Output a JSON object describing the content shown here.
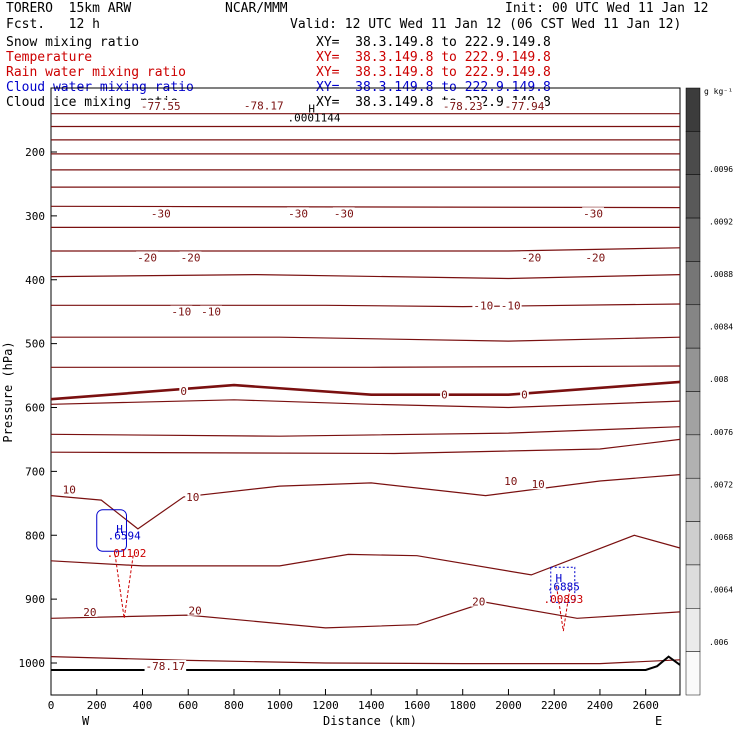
{
  "header": {
    "model": "TORERO  15km ARW",
    "fcst": "Fcst.   12 h",
    "center": "NCAR/MMM",
    "init": "Init: 00 UTC Wed 11 Jan 12",
    "valid": "Valid: 12 UTC Wed 11 Jan 12 (06 CST Wed 11 Jan 12)"
  },
  "fields": [
    {
      "name": "Snow mixing ratio",
      "xy": "XY=  38.3.149.8 to 222.9.149.8",
      "color": "#000000"
    },
    {
      "name": "Temperature",
      "xy": "XY=  38.3.149.8 to 222.9.149.8",
      "color": "#cc0000"
    },
    {
      "name": "Rain water mixing ratio",
      "xy": "XY=  38.3.149.8 to 222.9.149.8",
      "color": "#cc0000"
    },
    {
      "name": "Cloud water mixing ratio",
      "xy": "XY=  38.3.149.8 to 222.9.149.8",
      "color": "#0000cc"
    },
    {
      "name": "Cloud ice mixing ratio",
      "xy": "XY=  38.3.149.8 to 222.9.149.8",
      "color": "#000000"
    }
  ],
  "chart_data": {
    "type": "cross-section contour",
    "xlabel": "Distance (km)",
    "ylabel": "Pressure (hPa)",
    "x_ticks": [
      0,
      200,
      400,
      600,
      800,
      1000,
      1200,
      1400,
      1600,
      1800,
      2000,
      2200,
      2400,
      2600
    ],
    "y_ticks": [
      200,
      300,
      400,
      500,
      600,
      700,
      800,
      900,
      1000
    ],
    "xlim": [
      0,
      2750
    ],
    "ylim": [
      1050,
      120
    ],
    "x_end_labels": {
      "left": "W",
      "right": "E"
    },
    "colorbar": {
      "unit": "g kg⁻¹",
      "labels": [
        ".006",
        ".0064",
        ".0068",
        ".0072",
        ".0076",
        ".008",
        ".0084",
        ".0088",
        ".0092",
        ".0096"
      ]
    },
    "temperature_contour_labels": [
      {
        "x": 500,
        "p": 1004.8,
        "text": "-78.17"
      },
      {
        "x": 930,
        "p": 127,
        "text": "-78.17"
      },
      {
        "x": 480,
        "p": 128,
        "text": "-77.55"
      },
      {
        "x": 1800,
        "p": 128,
        "text": "-78.23"
      },
      {
        "x": 2070,
        "p": 128,
        "text": "-77.94"
      },
      {
        "x": 480,
        "p": 296,
        "text": "-30"
      },
      {
        "x": 1080,
        "p": 296,
        "text": "-30"
      },
      {
        "x": 1280,
        "p": 296,
        "text": "-30"
      },
      {
        "x": 2370,
        "p": 296,
        "text": "-30"
      },
      {
        "x": 420,
        "p": 365,
        "text": "-20"
      },
      {
        "x": 610,
        "p": 365,
        "text": "-20"
      },
      {
        "x": 2100,
        "p": 365,
        "text": "-20"
      },
      {
        "x": 2380,
        "p": 365,
        "text": "-20"
      },
      {
        "x": 570,
        "p": 450,
        "text": "-10"
      },
      {
        "x": 700,
        "p": 450,
        "text": "-10"
      },
      {
        "x": 1890,
        "p": 440,
        "text": "-10"
      },
      {
        "x": 2010,
        "p": 440,
        "text": "-10"
      },
      {
        "x": 580,
        "p": 574,
        "text": "0"
      },
      {
        "x": 1720,
        "p": 580,
        "text": "0"
      },
      {
        "x": 2070,
        "p": 580,
        "text": "0"
      },
      {
        "x": 80,
        "p": 728,
        "text": "10"
      },
      {
        "x": 620,
        "p": 740,
        "text": "10"
      },
      {
        "x": 2010,
        "p": 715,
        "text": "10"
      },
      {
        "x": 2130,
        "p": 720,
        "text": "10"
      },
      {
        "x": 170,
        "p": 920,
        "text": "20"
      },
      {
        "x": 630,
        "p": 918,
        "text": "20"
      },
      {
        "x": 1870,
        "p": 904,
        "text": "20"
      }
    ],
    "features": [
      {
        "kind": "max",
        "label": "H",
        "x": 300,
        "p": 790,
        "color": "#0000cc"
      },
      {
        "kind": "max_value",
        "text": ".6594",
        "x": 320,
        "p": 800,
        "color": "#0000cc"
      },
      {
        "kind": "max_value",
        "text": ".01102",
        "x": 330,
        "p": 828,
        "color": "#cc0000"
      },
      {
        "kind": "max",
        "label": "H",
        "x": 2220,
        "p": 867,
        "color": "#0000cc"
      },
      {
        "kind": "max_value",
        "text": ".6885",
        "x": 2240,
        "p": 880,
        "color": "#0000cc"
      },
      {
        "kind": "max_value",
        "text": ".00893",
        "x": 2240,
        "p": 900,
        "color": "#cc0000"
      },
      {
        "kind": "max",
        "label": "H",
        "x": 1140,
        "p": 132,
        "color": "#000000"
      },
      {
        "kind": "max_value",
        "text": ".0001144",
        "x": 1150,
        "p": 146,
        "color": "#000000"
      }
    ],
    "isotherms": [
      [
        [
          0,
          140
        ],
        [
          2750,
          140
        ]
      ],
      [
        [
          0,
          160
        ],
        [
          2750,
          160
        ]
      ],
      [
        [
          0,
          181
        ],
        [
          2750,
          181
        ]
      ],
      [
        [
          0,
          203
        ],
        [
          2750,
          203
        ]
      ],
      [
        [
          0,
          228
        ],
        [
          2750,
          228
        ]
      ],
      [
        [
          0,
          255
        ],
        [
          2750,
          255
        ]
      ],
      [
        [
          0,
          285
        ],
        [
          2750,
          287
        ]
      ],
      [
        [
          0,
          318
        ],
        [
          1200,
          318
        ],
        [
          2750,
          318
        ]
      ],
      [
        [
          0,
          355
        ],
        [
          2000,
          355
        ],
        [
          2750,
          350
        ]
      ],
      [
        [
          0,
          395
        ],
        [
          900,
          392
        ],
        [
          2000,
          398
        ],
        [
          2750,
          392
        ]
      ],
      [
        [
          0,
          440
        ],
        [
          1200,
          440
        ],
        [
          1800,
          442
        ],
        [
          2750,
          438
        ]
      ],
      [
        [
          0,
          490
        ],
        [
          1000,
          490
        ],
        [
          2000,
          496
        ],
        [
          2750,
          490
        ]
      ],
      [
        [
          0,
          537
        ],
        [
          1400,
          537
        ],
        [
          2750,
          535
        ]
      ],
      [
        [
          0,
          595
        ],
        [
          800,
          588
        ],
        [
          1400,
          595
        ],
        [
          2000,
          600
        ],
        [
          2750,
          590
        ]
      ],
      [
        [
          0,
          642
        ],
        [
          1000,
          645
        ],
        [
          2000,
          640
        ],
        [
          2750,
          630
        ]
      ],
      [
        [
          0,
          670
        ],
        [
          1500,
          672
        ],
        [
          2400,
          665
        ],
        [
          2750,
          650
        ]
      ],
      [
        [
          0,
          738
        ],
        [
          220,
          745
        ],
        [
          380,
          790
        ],
        [
          580,
          740
        ],
        [
          1000,
          723
        ],
        [
          1400,
          718
        ],
        [
          1900,
          738
        ],
        [
          2400,
          715
        ],
        [
          2750,
          705
        ]
      ],
      [
        [
          0,
          840
        ],
        [
          400,
          848
        ],
        [
          1000,
          848
        ],
        [
          1300,
          830
        ],
        [
          1600,
          832
        ],
        [
          2100,
          862
        ],
        [
          2550,
          800
        ],
        [
          2750,
          820
        ]
      ],
      [
        [
          0,
          930
        ],
        [
          600,
          925
        ],
        [
          1200,
          945
        ],
        [
          1600,
          940
        ],
        [
          1900,
          905
        ],
        [
          2300,
          930
        ],
        [
          2750,
          920
        ]
      ],
      [
        [
          0,
          990
        ],
        [
          600,
          996
        ],
        [
          1200,
          1000
        ],
        [
          1800,
          1001
        ],
        [
          2400,
          1001
        ],
        [
          2750,
          995
        ]
      ]
    ],
    "zero_isotherm": [
      [
        0,
        587
      ],
      [
        800,
        565
      ],
      [
        1400,
        580
      ],
      [
        2000,
        580
      ],
      [
        2750,
        560
      ]
    ],
    "terrain": [
      [
        0,
        1011
      ],
      [
        2600,
        1011
      ],
      [
        2650,
        1005
      ],
      [
        2700,
        990
      ],
      [
        2750,
        1003
      ]
    ]
  }
}
